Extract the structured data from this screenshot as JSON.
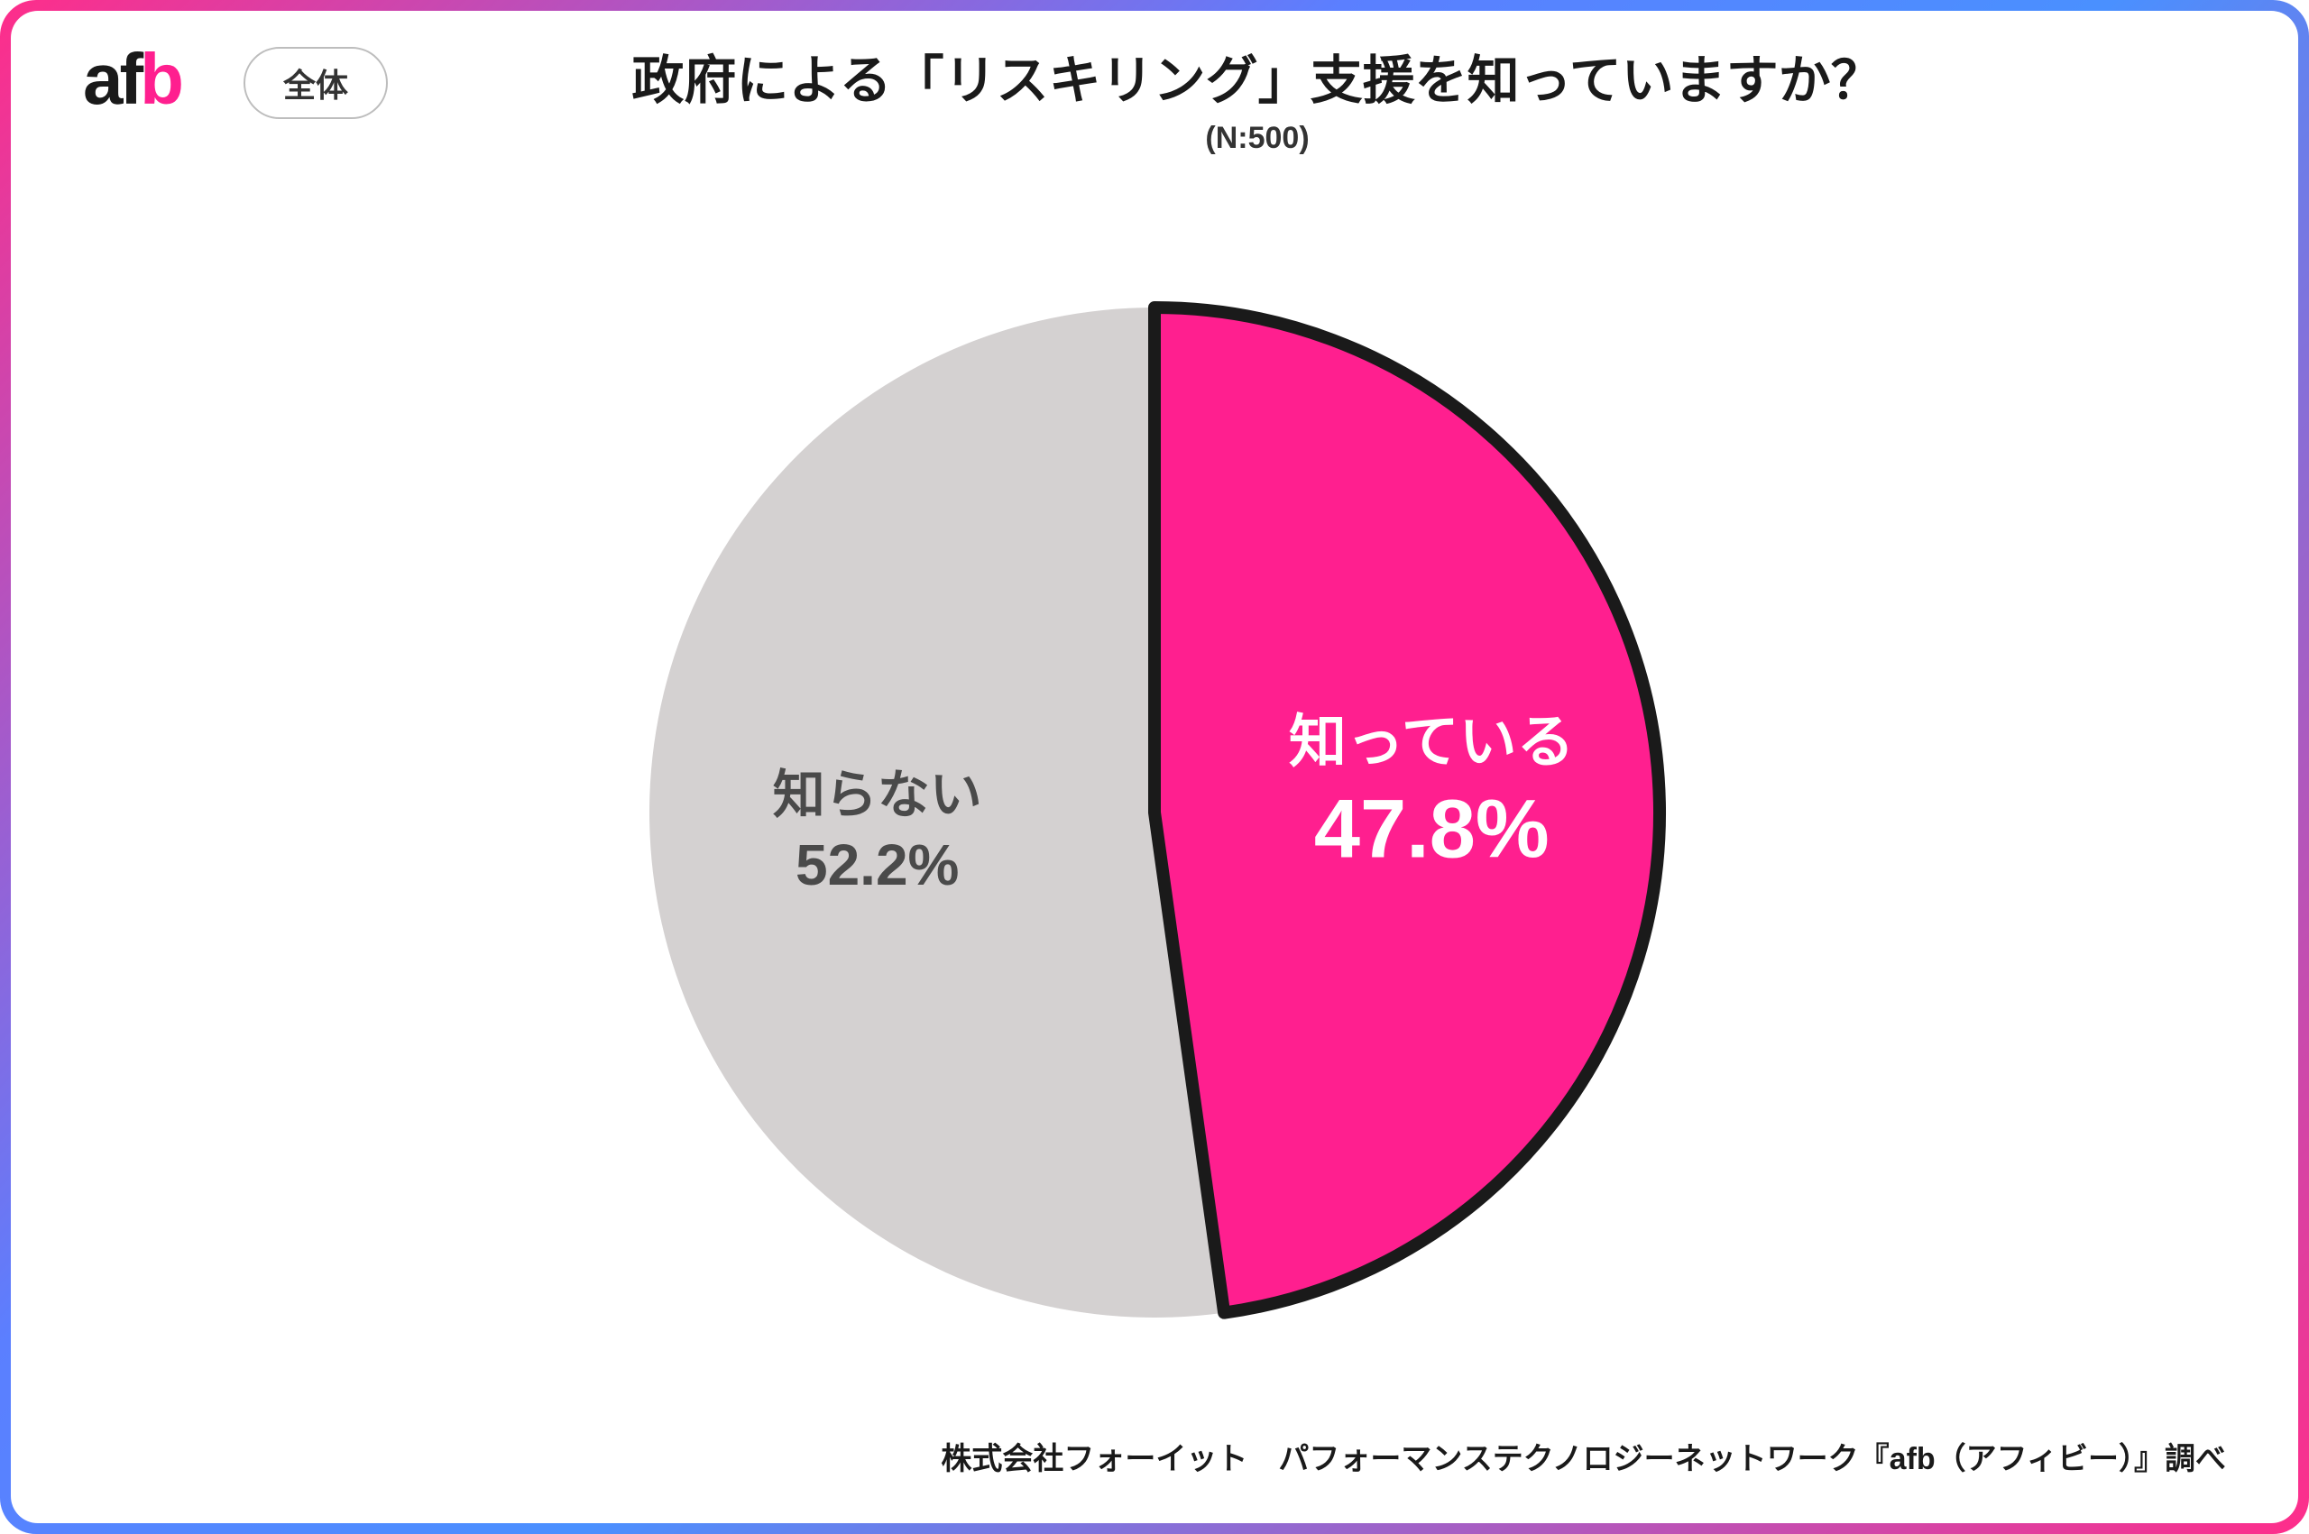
{
  "logo": {
    "text": "afb",
    "accent_letter": "b",
    "accent_color": "#ff1f8f",
    "base_color": "#1a1a1a"
  },
  "badge": "全体",
  "title": "政府による「リスキリング」支援を知っていますか？",
  "subtitle": "(N:500)",
  "chart": {
    "type": "pie",
    "radius": 560,
    "start_angle_deg": 0,
    "stroke_color": "#1a1a1a",
    "highlight_stroke_width": 14,
    "slices": [
      {
        "key": "know",
        "label": "知っている",
        "percent_text": "47.8%",
        "value": 47.8,
        "fill": "#ff1f8f",
        "label_color": "#ffffff",
        "name_fontsize": 64,
        "pct_fontsize": 92,
        "highlighted": true
      },
      {
        "key": "dontknow",
        "label": "知らない",
        "percent_text": "52.2%",
        "value": 52.2,
        "fill": "#d4d1d1",
        "label_color": "#4a4a4a",
        "name_fontsize": 58,
        "pct_fontsize": 64,
        "highlighted": false
      }
    ]
  },
  "footer": "株式会社フォーイット　パフォーマンステクノロジーネットワーク『afb（アフィビー）』調べ",
  "frame_gradient": [
    "#ff2d8a",
    "#5b7fff",
    "#4a90ff",
    "#ff2d8a"
  ],
  "background_color": "#ffffff"
}
